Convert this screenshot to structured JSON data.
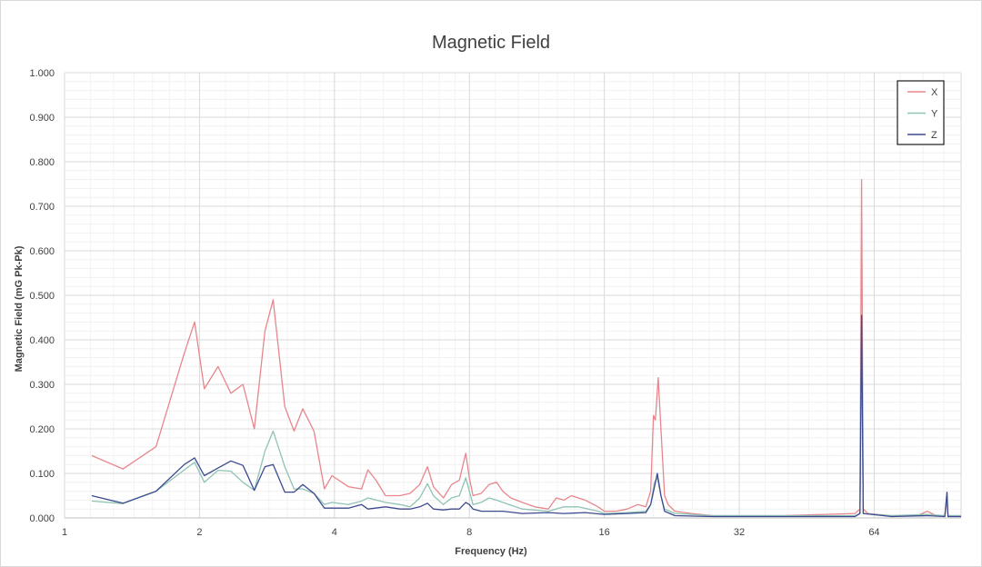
{
  "chart_data": {
    "type": "line",
    "title": "Magnetic Field",
    "xlabel": "Frequency (Hz)",
    "ylabel": "Magnetic Field (mG Pk-Pk)",
    "x_scale": "log2",
    "xlim": [
      1,
      100
    ],
    "ylim": [
      0,
      1
    ],
    "x_ticks": [
      1,
      2,
      4,
      8,
      16,
      32,
      64
    ],
    "x_tick_labels": [
      "1",
      "2",
      "4",
      "8",
      "16",
      "32",
      "64"
    ],
    "y_ticks": [
      0,
      0.1,
      0.2,
      0.3,
      0.4,
      0.5,
      0.6,
      0.7,
      0.8,
      0.9,
      1.0
    ],
    "y_tick_labels": [
      "0.000",
      "0.100",
      "0.200",
      "0.300",
      "0.400",
      "0.500",
      "0.600",
      "0.700",
      "0.800",
      "0.900",
      "1.000"
    ],
    "grid": true,
    "legend": "top-right",
    "series": [
      {
        "name": "X",
        "color": "#e8868c",
        "points": [
          [
            1.15,
            0.14
          ],
          [
            1.35,
            0.11
          ],
          [
            1.6,
            0.16
          ],
          [
            1.85,
            0.37
          ],
          [
            1.95,
            0.44
          ],
          [
            2.05,
            0.29
          ],
          [
            2.2,
            0.34
          ],
          [
            2.35,
            0.28
          ],
          [
            2.5,
            0.3
          ],
          [
            2.65,
            0.2
          ],
          [
            2.8,
            0.42
          ],
          [
            2.92,
            0.49
          ],
          [
            3.1,
            0.25
          ],
          [
            3.25,
            0.195
          ],
          [
            3.4,
            0.245
          ],
          [
            3.6,
            0.195
          ],
          [
            3.8,
            0.065
          ],
          [
            3.95,
            0.095
          ],
          [
            4.3,
            0.07
          ],
          [
            4.6,
            0.065
          ],
          [
            4.75,
            0.108
          ],
          [
            4.95,
            0.085
          ],
          [
            5.2,
            0.05
          ],
          [
            5.6,
            0.05
          ],
          [
            5.9,
            0.055
          ],
          [
            6.2,
            0.075
          ],
          [
            6.45,
            0.115
          ],
          [
            6.65,
            0.07
          ],
          [
            7.0,
            0.045
          ],
          [
            7.3,
            0.075
          ],
          [
            7.6,
            0.085
          ],
          [
            7.85,
            0.145
          ],
          [
            8.0,
            0.09
          ],
          [
            8.15,
            0.05
          ],
          [
            8.5,
            0.055
          ],
          [
            8.85,
            0.075
          ],
          [
            9.2,
            0.08
          ],
          [
            9.5,
            0.06
          ],
          [
            9.9,
            0.045
          ],
          [
            10.5,
            0.035
          ],
          [
            11.2,
            0.025
          ],
          [
            12.0,
            0.02
          ],
          [
            12.5,
            0.045
          ],
          [
            13.0,
            0.04
          ],
          [
            13.5,
            0.05
          ],
          [
            14.5,
            0.04
          ],
          [
            15.5,
            0.025
          ],
          [
            16.0,
            0.015
          ],
          [
            17,
            0.015
          ],
          [
            18,
            0.02
          ],
          [
            19,
            0.03
          ],
          [
            19.8,
            0.025
          ],
          [
            20.3,
            0.06
          ],
          [
            20.6,
            0.23
          ],
          [
            20.8,
            0.22
          ],
          [
            21.1,
            0.315
          ],
          [
            21.4,
            0.2
          ],
          [
            21.8,
            0.05
          ],
          [
            22.2,
            0.03
          ],
          [
            23,
            0.015
          ],
          [
            25,
            0.01
          ],
          [
            28,
            0.005
          ],
          [
            32,
            0.005
          ],
          [
            40,
            0.005
          ],
          [
            50,
            0.008
          ],
          [
            58,
            0.01
          ],
          [
            59.5,
            0.02
          ],
          [
            60,
            0.76
          ],
          [
            60.5,
            0.02
          ],
          [
            62,
            0.01
          ],
          [
            70,
            0.005
          ],
          [
            80,
            0.005
          ],
          [
            84,
            0.015
          ],
          [
            88,
            0.005
          ],
          [
            92,
            0.005
          ],
          [
            93,
            0.04
          ],
          [
            93.5,
            0.005
          ],
          [
            100,
            0.005
          ]
        ]
      },
      {
        "name": "Y",
        "color": "#8fc3b4",
        "points": [
          [
            1.15,
            0.038
          ],
          [
            1.35,
            0.032
          ],
          [
            1.6,
            0.06
          ],
          [
            1.85,
            0.108
          ],
          [
            1.95,
            0.125
          ],
          [
            2.05,
            0.08
          ],
          [
            2.2,
            0.107
          ],
          [
            2.35,
            0.105
          ],
          [
            2.5,
            0.08
          ],
          [
            2.65,
            0.062
          ],
          [
            2.8,
            0.15
          ],
          [
            2.92,
            0.195
          ],
          [
            3.1,
            0.115
          ],
          [
            3.25,
            0.065
          ],
          [
            3.4,
            0.065
          ],
          [
            3.6,
            0.055
          ],
          [
            3.8,
            0.03
          ],
          [
            3.95,
            0.035
          ],
          [
            4.3,
            0.03
          ],
          [
            4.6,
            0.038
          ],
          [
            4.75,
            0.045
          ],
          [
            5.2,
            0.035
          ],
          [
            5.6,
            0.03
          ],
          [
            5.9,
            0.025
          ],
          [
            6.2,
            0.045
          ],
          [
            6.45,
            0.077
          ],
          [
            6.65,
            0.05
          ],
          [
            7.0,
            0.03
          ],
          [
            7.3,
            0.045
          ],
          [
            7.6,
            0.05
          ],
          [
            7.85,
            0.09
          ],
          [
            8.0,
            0.06
          ],
          [
            8.15,
            0.03
          ],
          [
            8.5,
            0.035
          ],
          [
            8.85,
            0.045
          ],
          [
            9.2,
            0.04
          ],
          [
            9.5,
            0.035
          ],
          [
            10.5,
            0.02
          ],
          [
            12.0,
            0.015
          ],
          [
            13.0,
            0.025
          ],
          [
            14.0,
            0.025
          ],
          [
            15.5,
            0.015
          ],
          [
            16.0,
            0.01
          ],
          [
            18,
            0.012
          ],
          [
            19.8,
            0.015
          ],
          [
            20.3,
            0.03
          ],
          [
            20.7,
            0.08
          ],
          [
            21.0,
            0.09
          ],
          [
            21.4,
            0.05
          ],
          [
            21.8,
            0.02
          ],
          [
            23,
            0.01
          ],
          [
            28,
            0.005
          ],
          [
            40,
            0.005
          ],
          [
            58,
            0.005
          ],
          [
            59.5,
            0.01
          ],
          [
            60,
            0.47
          ],
          [
            60.5,
            0.01
          ],
          [
            70,
            0.005
          ],
          [
            84,
            0.008
          ],
          [
            92,
            0.005
          ],
          [
            93,
            0.055
          ],
          [
            93.5,
            0.005
          ],
          [
            100,
            0.005
          ]
        ]
      },
      {
        "name": "Z",
        "color": "#3d4a8f",
        "points": [
          [
            1.15,
            0.05
          ],
          [
            1.35,
            0.033
          ],
          [
            1.6,
            0.06
          ],
          [
            1.85,
            0.12
          ],
          [
            1.95,
            0.135
          ],
          [
            2.05,
            0.095
          ],
          [
            2.2,
            0.112
          ],
          [
            2.35,
            0.128
          ],
          [
            2.5,
            0.118
          ],
          [
            2.65,
            0.062
          ],
          [
            2.8,
            0.115
          ],
          [
            2.92,
            0.12
          ],
          [
            3.1,
            0.058
          ],
          [
            3.25,
            0.058
          ],
          [
            3.4,
            0.075
          ],
          [
            3.6,
            0.055
          ],
          [
            3.8,
            0.022
          ],
          [
            4.3,
            0.022
          ],
          [
            4.6,
            0.03
          ],
          [
            4.75,
            0.02
          ],
          [
            5.2,
            0.025
          ],
          [
            5.6,
            0.02
          ],
          [
            5.9,
            0.02
          ],
          [
            6.2,
            0.025
          ],
          [
            6.45,
            0.033
          ],
          [
            6.65,
            0.02
          ],
          [
            7.0,
            0.018
          ],
          [
            7.3,
            0.02
          ],
          [
            7.6,
            0.02
          ],
          [
            7.85,
            0.035
          ],
          [
            8.0,
            0.03
          ],
          [
            8.15,
            0.02
          ],
          [
            8.5,
            0.015
          ],
          [
            9.5,
            0.015
          ],
          [
            10.5,
            0.01
          ],
          [
            12.0,
            0.012
          ],
          [
            13.0,
            0.01
          ],
          [
            14.5,
            0.012
          ],
          [
            16.0,
            0.008
          ],
          [
            18,
            0.01
          ],
          [
            19.8,
            0.012
          ],
          [
            20.3,
            0.03
          ],
          [
            20.7,
            0.07
          ],
          [
            21.0,
            0.1
          ],
          [
            21.4,
            0.05
          ],
          [
            21.8,
            0.015
          ],
          [
            23,
            0.005
          ],
          [
            28,
            0.003
          ],
          [
            40,
            0.003
          ],
          [
            58,
            0.003
          ],
          [
            59.5,
            0.01
          ],
          [
            60,
            0.455
          ],
          [
            60.5,
            0.01
          ],
          [
            70,
            0.003
          ],
          [
            84,
            0.005
          ],
          [
            92,
            0.003
          ],
          [
            93,
            0.058
          ],
          [
            93.5,
            0.003
          ],
          [
            100,
            0.003
          ]
        ]
      }
    ]
  }
}
